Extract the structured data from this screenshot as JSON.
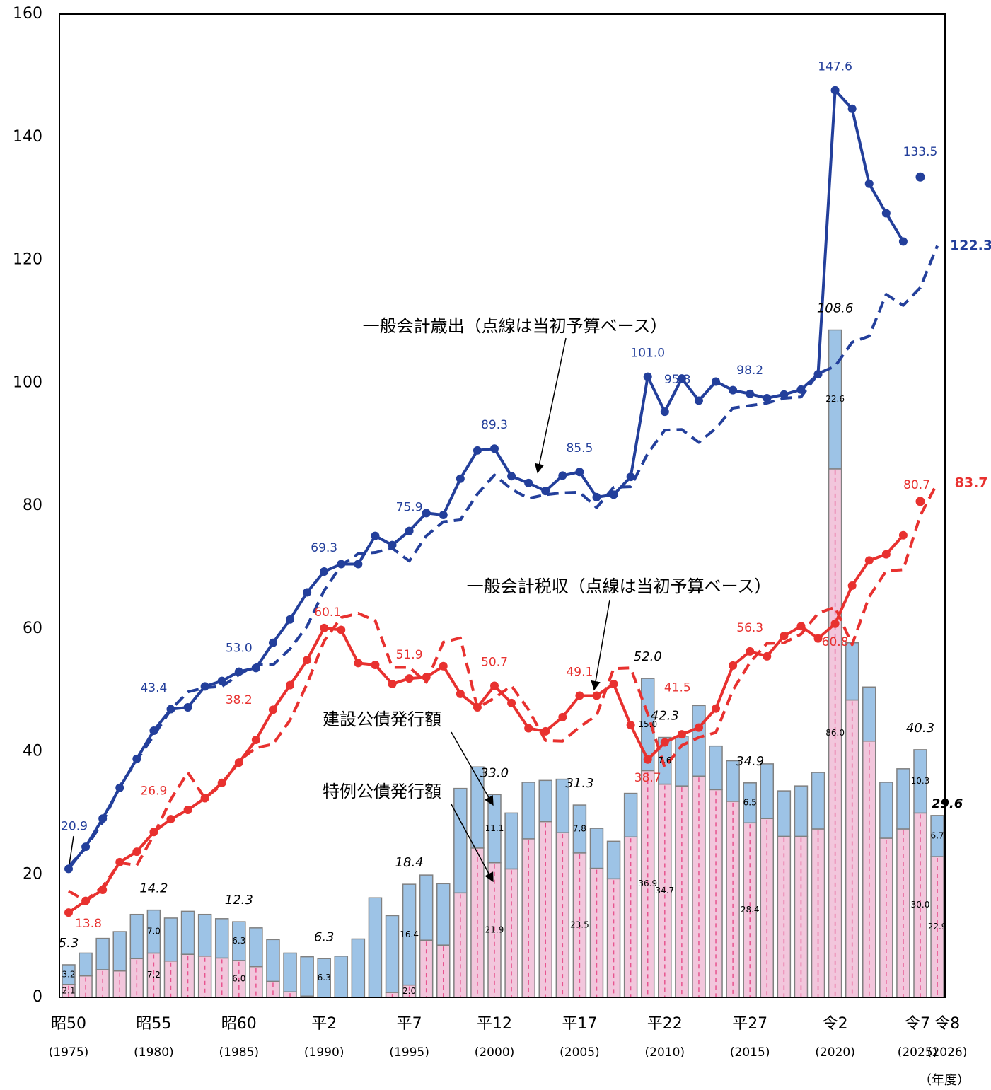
{
  "chart_data": {
    "type": "combo",
    "categories": [
      "昭50",
      null,
      null,
      null,
      null,
      "昭55",
      null,
      null,
      null,
      null,
      "昭60",
      null,
      null,
      null,
      null,
      "平2",
      null,
      null,
      null,
      null,
      "平7",
      null,
      null,
      null,
      null,
      "平12",
      null,
      null,
      null,
      null,
      "平17",
      null,
      null,
      null,
      null,
      "平22",
      null,
      null,
      null,
      null,
      "平27",
      null,
      null,
      null,
      null,
      "令2",
      null,
      null,
      null,
      null,
      "令7",
      "令8"
    ],
    "year_labels": [
      "(1975)",
      null,
      null,
      null,
      null,
      "(1980)",
      null,
      null,
      null,
      null,
      "(1985)",
      null,
      null,
      null,
      null,
      "(1990)",
      null,
      null,
      null,
      null,
      "(1995)",
      null,
      null,
      null,
      null,
      "(2000)",
      null,
      null,
      null,
      null,
      "(2005)",
      null,
      null,
      null,
      null,
      "(2010)",
      null,
      null,
      null,
      null,
      "(2015)",
      null,
      null,
      null,
      null,
      "(2020)",
      null,
      null,
      null,
      null,
      "(2025)",
      "(2026)"
    ],
    "x_label": "（年度）",
    "ylim": [
      0,
      160
    ],
    "yticks": [
      0,
      20,
      40,
      60,
      80,
      100,
      120,
      140,
      160
    ],
    "grid": false,
    "lines": [
      {
        "name": "一般会計歳出（点線は当初予算ベース）",
        "color": "#233f9b",
        "values": [
          20.9,
          24.5,
          29.1,
          34.1,
          38.8,
          43.4,
          46.9,
          47.2,
          50.6,
          51.5,
          53.0,
          53.6,
          57.7,
          61.5,
          65.9,
          69.3,
          70.5,
          70.5,
          75.1,
          73.6,
          75.9,
          78.8,
          78.5,
          84.4,
          89.0,
          89.3,
          84.8,
          83.7,
          82.4,
          84.9,
          85.5,
          81.4,
          81.8,
          84.7,
          101.0,
          95.3,
          100.7,
          97.1,
          100.2,
          98.8,
          98.2,
          97.5,
          98.1,
          98.9,
          101.4,
          147.6,
          144.6,
          132.4,
          127.6,
          123.0,
          null,
          null
        ],
        "value_labels": [
          "20.9",
          null,
          null,
          null,
          null,
          "43.4",
          null,
          null,
          null,
          null,
          "53.0",
          null,
          null,
          null,
          null,
          "69.3",
          null,
          null,
          null,
          null,
          "75.9",
          null,
          null,
          null,
          null,
          "89.3",
          null,
          null,
          null,
          null,
          "85.5",
          null,
          null,
          null,
          "101.0",
          "95.3",
          null,
          null,
          null,
          null,
          "98.2",
          null,
          null,
          null,
          null,
          "147.6",
          null,
          null,
          null,
          null,
          null,
          null
        ],
        "estimate": [
          null,
          null,
          null,
          null,
          null,
          null,
          null,
          null,
          null,
          null,
          null,
          null,
          null,
          null,
          null,
          null,
          null,
          null,
          null,
          null,
          null,
          null,
          null,
          null,
          null,
          null,
          null,
          null,
          null,
          null,
          null,
          null,
          null,
          null,
          null,
          null,
          null,
          null,
          null,
          null,
          null,
          null,
          null,
          null,
          null,
          null,
          null,
          null,
          null,
          null,
          133.5,
          null
        ],
        "estimate_labels": [
          null,
          null,
          null,
          null,
          null,
          null,
          null,
          null,
          null,
          null,
          null,
          null,
          null,
          null,
          null,
          null,
          null,
          null,
          null,
          null,
          null,
          null,
          null,
          null,
          null,
          null,
          null,
          null,
          null,
          null,
          null,
          null,
          null,
          null,
          null,
          null,
          null,
          null,
          null,
          null,
          null,
          null,
          null,
          null,
          null,
          null,
          null,
          null,
          null,
          null,
          "133.5",
          null
        ],
        "budget": [
          21.3,
          24.3,
          28.5,
          34.3,
          38.6,
          42.6,
          46.8,
          49.7,
          50.4,
          50.6,
          52.5,
          54.1,
          54.1,
          56.7,
          60.4,
          66.2,
          70.3,
          72.2,
          72.4,
          73.1,
          71.0,
          75.1,
          77.4,
          77.7,
          81.9,
          85.0,
          82.7,
          81.2,
          81.8,
          82.1,
          82.2,
          79.7,
          83.0,
          83.1,
          88.5,
          92.3,
          92.4,
          90.3,
          92.6,
          95.9,
          96.3,
          96.7,
          97.5,
          97.7,
          101.5,
          102.7,
          106.6,
          107.6,
          114.4,
          112.6,
          115.5,
          122.3
        ],
        "budget_labels": [
          null,
          null,
          null,
          null,
          null,
          null,
          null,
          null,
          null,
          null,
          null,
          null,
          null,
          null,
          null,
          null,
          null,
          null,
          null,
          null,
          null,
          null,
          null,
          null,
          null,
          null,
          null,
          null,
          null,
          null,
          null,
          null,
          null,
          null,
          null,
          null,
          null,
          null,
          null,
          null,
          null,
          null,
          null,
          null,
          null,
          null,
          null,
          null,
          null,
          null,
          null,
          "122.3"
        ]
      },
      {
        "name": "一般会計税収（点線は当初予算ベース）",
        "color": "#e8312f",
        "values": [
          13.8,
          15.7,
          17.5,
          22.0,
          23.7,
          26.9,
          29.0,
          30.5,
          32.4,
          34.9,
          38.2,
          41.9,
          46.8,
          50.8,
          54.9,
          60.1,
          59.8,
          54.4,
          54.1,
          51.0,
          51.9,
          52.1,
          53.9,
          49.4,
          47.2,
          50.7,
          47.9,
          43.8,
          43.3,
          45.6,
          49.1,
          49.1,
          51.0,
          44.3,
          38.7,
          41.5,
          42.8,
          43.9,
          47.0,
          54.0,
          56.3,
          55.5,
          58.8,
          60.4,
          58.4,
          60.8,
          67.0,
          71.1,
          72.1,
          75.2,
          null,
          null
        ],
        "value_labels": [
          "13.8",
          null,
          null,
          null,
          null,
          "26.9",
          null,
          null,
          null,
          null,
          "38.2",
          null,
          null,
          null,
          null,
          "60.1",
          null,
          null,
          null,
          null,
          "51.9",
          null,
          null,
          null,
          null,
          "50.7",
          null,
          null,
          null,
          null,
          "49.1",
          null,
          null,
          null,
          "38.7",
          "41.5",
          null,
          null,
          null,
          null,
          "56.3",
          null,
          null,
          null,
          null,
          "60.8",
          null,
          null,
          null,
          null,
          null,
          null
        ],
        "estimate": [
          null,
          null,
          null,
          null,
          null,
          null,
          null,
          null,
          null,
          null,
          null,
          null,
          null,
          null,
          null,
          null,
          null,
          null,
          null,
          null,
          null,
          null,
          null,
          null,
          null,
          null,
          null,
          null,
          null,
          null,
          null,
          null,
          null,
          null,
          null,
          null,
          null,
          null,
          null,
          null,
          null,
          null,
          null,
          null,
          null,
          null,
          null,
          null,
          null,
          null,
          80.7,
          null
        ],
        "estimate_labels": [
          null,
          null,
          null,
          null,
          null,
          null,
          null,
          null,
          null,
          null,
          null,
          null,
          null,
          null,
          null,
          null,
          null,
          null,
          null,
          null,
          null,
          null,
          null,
          null,
          null,
          null,
          null,
          null,
          null,
          null,
          null,
          null,
          null,
          null,
          null,
          null,
          null,
          null,
          null,
          null,
          null,
          null,
          null,
          null,
          null,
          null,
          null,
          null,
          null,
          null,
          "80.7",
          null
        ],
        "budget": [
          17.3,
          15.7,
          18.0,
          21.9,
          21.5,
          26.4,
          32.2,
          36.6,
          32.4,
          34.6,
          38.5,
          40.6,
          41.2,
          45.1,
          51.0,
          58.0,
          61.8,
          62.5,
          61.3,
          53.7,
          53.7,
          51.3,
          57.8,
          58.5,
          47.1,
          48.7,
          50.7,
          46.8,
          41.8,
          41.7,
          44.0,
          45.9,
          53.5,
          53.6,
          46.1,
          37.4,
          41.0,
          42.3,
          43.1,
          50.0,
          54.5,
          57.6,
          57.7,
          59.1,
          62.5,
          63.5,
          57.4,
          65.2,
          69.4,
          69.6,
          78.4,
          83.7
        ],
        "budget_labels": [
          null,
          null,
          null,
          null,
          null,
          null,
          null,
          null,
          null,
          null,
          null,
          null,
          null,
          null,
          null,
          null,
          null,
          null,
          null,
          null,
          null,
          null,
          null,
          null,
          null,
          null,
          null,
          null,
          null,
          null,
          null,
          null,
          null,
          null,
          null,
          null,
          null,
          null,
          null,
          null,
          null,
          null,
          null,
          null,
          null,
          null,
          null,
          null,
          null,
          null,
          null,
          "83.7"
        ]
      }
    ],
    "bars": [
      {
        "name": "特例公債発行額",
        "color": "#f2c6dc",
        "values": [
          2.1,
          3.5,
          4.5,
          4.3,
          6.3,
          7.2,
          5.9,
          7.0,
          6.7,
          6.4,
          6.0,
          5.0,
          2.6,
          0.9,
          0.2,
          0,
          0,
          0,
          0,
          0.8,
          2.0,
          9.3,
          8.5,
          17.0,
          24.3,
          21.9,
          20.9,
          25.8,
          28.6,
          26.8,
          23.5,
          21.0,
          19.3,
          26.1,
          36.9,
          34.7,
          34.4,
          36.0,
          33.8,
          31.9,
          28.4,
          29.1,
          26.2,
          26.2,
          27.4,
          86.0,
          48.4,
          41.7,
          25.9,
          27.4,
          30.0,
          22.9
        ],
        "value_labels": [
          "2.1",
          null,
          null,
          null,
          null,
          "7.2",
          null,
          null,
          null,
          null,
          "6.0",
          null,
          null,
          null,
          null,
          null,
          null,
          null,
          null,
          null,
          "2.0",
          null,
          null,
          null,
          null,
          "21.9",
          null,
          null,
          null,
          null,
          "23.5",
          null,
          null,
          null,
          "36.9",
          "34.7",
          null,
          null,
          null,
          null,
          "28.4",
          null,
          null,
          null,
          null,
          "86.0",
          null,
          null,
          null,
          null,
          "30.0",
          "22.9"
        ]
      },
      {
        "name": "建設公債発行額",
        "color": "#9dc3e6",
        "values": [
          3.2,
          3.7,
          5.1,
          6.4,
          7.2,
          7.0,
          7.0,
          7.0,
          6.8,
          6.4,
          6.3,
          6.3,
          6.8,
          6.3,
          6.4,
          6.3,
          6.7,
          9.5,
          16.2,
          12.5,
          16.4,
          10.6,
          10.0,
          17.0,
          13.2,
          11.1,
          9.1,
          9.2,
          6.7,
          8.7,
          7.8,
          6.5,
          6.1,
          7.1,
          15.0,
          7.6,
          8.1,
          11.5,
          7.1,
          6.6,
          6.5,
          8.9,
          7.4,
          8.2,
          9.2,
          22.6,
          9.3,
          8.8,
          9.1,
          9.8,
          10.3,
          6.7
        ],
        "value_labels": [
          "3.2",
          null,
          null,
          null,
          null,
          "7.0",
          null,
          null,
          null,
          null,
          "6.3",
          null,
          null,
          null,
          null,
          "6.3",
          null,
          null,
          null,
          null,
          "16.4",
          null,
          null,
          null,
          null,
          "11.1",
          null,
          null,
          null,
          null,
          "7.8",
          null,
          null,
          null,
          "15.0",
          "7.6",
          null,
          null,
          null,
          null,
          "6.5",
          null,
          null,
          null,
          null,
          "22.6",
          null,
          null,
          null,
          null,
          "10.3",
          "6.7"
        ]
      }
    ],
    "total_labels": [
      "5.3",
      null,
      null,
      null,
      null,
      "14.2",
      null,
      null,
      null,
      null,
      "12.3",
      null,
      null,
      null,
      null,
      "6.3",
      null,
      null,
      null,
      null,
      "18.4",
      null,
      null,
      null,
      null,
      "33.0",
      null,
      null,
      null,
      null,
      "31.3",
      null,
      null,
      null,
      "52.0",
      "42.3",
      null,
      null,
      null,
      null,
      "34.9",
      null,
      null,
      null,
      null,
      "108.6",
      null,
      null,
      null,
      null,
      "40.3",
      "29.6"
    ]
  }
}
